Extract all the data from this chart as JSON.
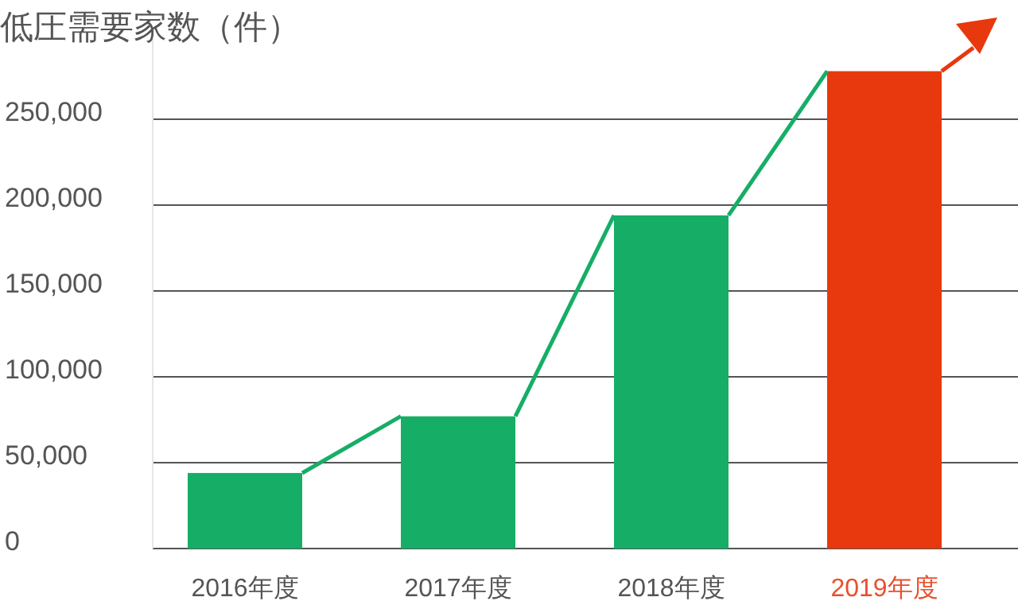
{
  "chart_data": {
    "type": "bar",
    "title": "低圧需要家数（件）",
    "categories": [
      "2016年度",
      "2017年度",
      "2018年度",
      "2019年度"
    ],
    "series": [
      {
        "values": [
          44000,
          77000,
          194000,
          278000
        ],
        "colors": [
          "#16ae66",
          "#16ae66",
          "#16ae66",
          "#e8380d"
        ]
      }
    ],
    "ylim": [
      0,
      300000
    ],
    "yticks": [
      {
        "value": 0,
        "label": "0"
      },
      {
        "value": 50000,
        "label": "50,000"
      },
      {
        "value": 100000,
        "label": "100,000"
      },
      {
        "value": 150000,
        "label": "150,000"
      },
      {
        "value": 200000,
        "label": "200,000"
      },
      {
        "value": 250000,
        "label": "250,000"
      }
    ],
    "grid": "y"
  }
}
